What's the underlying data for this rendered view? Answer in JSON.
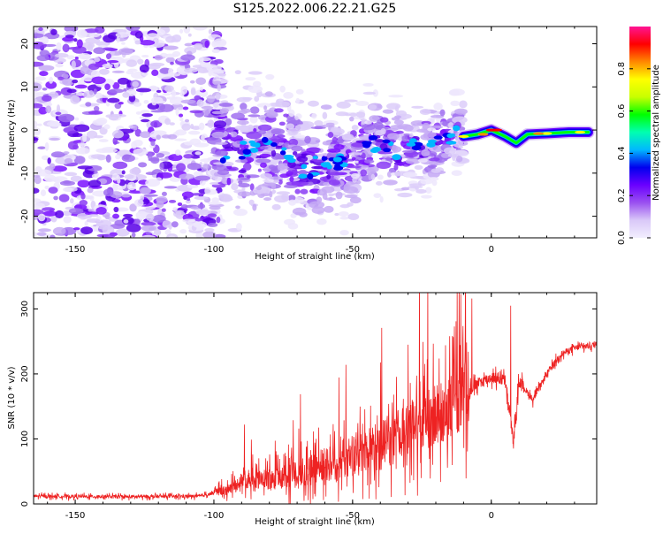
{
  "title": "S125.2022.006.22.21.G25",
  "colors": {
    "snr_line": "#ee2222",
    "colormap": [
      "#f2eefe",
      "#d9c8f8",
      "#9a50f0",
      "#6a00ff",
      "#0000ee",
      "#00b8ff",
      "#00ffb0",
      "#00ff00",
      "#c8ff00",
      "#ffff00",
      "#ff8800",
      "#ff0000",
      "#ff1493"
    ]
  },
  "chart_data": [
    {
      "type": "heatmap",
      "xlabel": "Height of straight line (km)",
      "ylabel": "Frequency (Hz)",
      "xlim": [
        -165,
        38
      ],
      "ylim": [
        -25,
        24
      ],
      "xticks": [
        -150,
        -100,
        -50,
        0
      ],
      "yticks": [
        -20,
        -10,
        0,
        10,
        20
      ],
      "colorbar": {
        "label": "Normalized spectral amplitude",
        "range": [
          0,
          1
        ],
        "ticks": [
          0.0,
          0.2,
          0.4,
          0.6,
          0.8
        ]
      },
      "ridge": [
        {
          "x": -97,
          "y": -5.5
        },
        {
          "x": -90,
          "y": -5
        },
        {
          "x": -82,
          "y": -3.5
        },
        {
          "x": -75,
          "y": -4.5
        },
        {
          "x": -68,
          "y": -10
        },
        {
          "x": -60,
          "y": -7
        },
        {
          "x": -52,
          "y": -8
        },
        {
          "x": -45,
          "y": -3
        },
        {
          "x": -38,
          "y": -4
        },
        {
          "x": -30,
          "y": -5
        },
        {
          "x": -22,
          "y": -3
        },
        {
          "x": -15,
          "y": -1
        },
        {
          "x": -10,
          "y": -1.5
        },
        {
          "x": -5,
          "y": -1
        },
        {
          "x": 0,
          "y": 0
        },
        {
          "x": 5,
          "y": -1.5
        },
        {
          "x": 9,
          "y": -3
        },
        {
          "x": 13,
          "y": -1
        },
        {
          "x": 20,
          "y": -0.8
        },
        {
          "x": 28,
          "y": -0.5
        },
        {
          "x": 35,
          "y": -0.5
        }
      ]
    },
    {
      "type": "line",
      "xlabel": "Height of straight line (km)",
      "ylabel": "SNR (10 * v/v)",
      "xlim": [
        -165,
        38
      ],
      "ylim": [
        0,
        325
      ],
      "xticks": [
        -150,
        -100,
        -50,
        0
      ],
      "yticks": [
        0,
        100,
        200,
        300
      ],
      "series": [
        {
          "baseline": [
            {
              "x": -165,
              "y": 12
            },
            {
              "x": -130,
              "y": 11
            },
            {
              "x": -105,
              "y": 12
            },
            {
              "x": -95,
              "y": 22
            },
            {
              "x": -90,
              "y": 35
            },
            {
              "x": -80,
              "y": 38
            },
            {
              "x": -70,
              "y": 45
            },
            {
              "x": -60,
              "y": 60
            },
            {
              "x": -50,
              "y": 75
            },
            {
              "x": -40,
              "y": 90
            },
            {
              "x": -30,
              "y": 110
            },
            {
              "x": -20,
              "y": 135
            },
            {
              "x": -10,
              "y": 165
            },
            {
              "x": -5,
              "y": 185
            },
            {
              "x": 0,
              "y": 195
            },
            {
              "x": 5,
              "y": 190
            },
            {
              "x": 8,
              "y": 95
            },
            {
              "x": 10,
              "y": 190
            },
            {
              "x": 15,
              "y": 160
            },
            {
              "x": 20,
              "y": 200
            },
            {
              "x": 25,
              "y": 230
            },
            {
              "x": 30,
              "y": 240
            },
            {
              "x": 38,
              "y": 245
            }
          ],
          "spikes": [
            {
              "x": -89,
              "y": 122
            },
            {
              "x": -30,
              "y": 245
            },
            {
              "x": -15,
              "y": 258
            },
            {
              "x": -11,
              "y": 323
            },
            {
              "x": -7,
              "y": 316
            },
            {
              "x": 7,
              "y": 305
            }
          ]
        }
      ]
    }
  ]
}
